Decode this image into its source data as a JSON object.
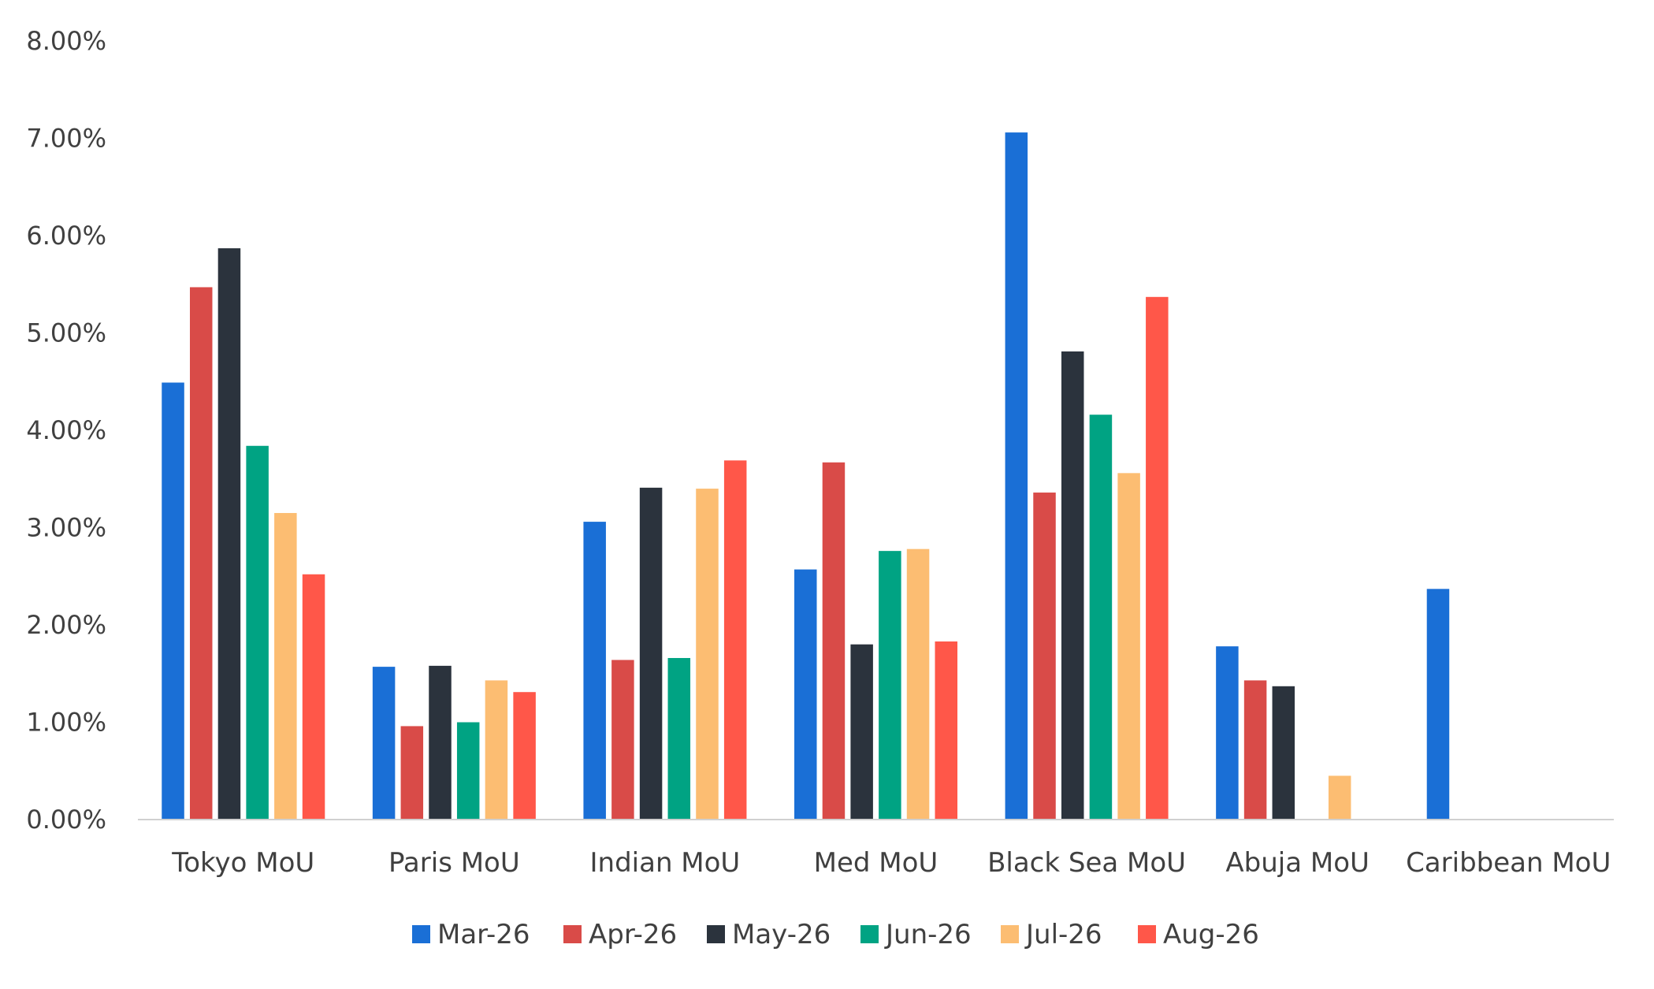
{
  "chart_data": {
    "type": "bar",
    "title": "",
    "xlabel": "",
    "ylabel": "",
    "ylim": [
      0,
      0.08
    ],
    "y_tick_step": 0.01,
    "y_tick_format": "percent-2dp",
    "grid": false,
    "legend_position": "bottom",
    "categories": [
      "Tokyo MoU",
      "Paris MoU",
      "Indian MoU",
      "Med MoU",
      "Black Sea MoU",
      "Abuja MoU",
      "Caribbean MoU"
    ],
    "series": [
      {
        "name": "Mar-26",
        "color": "#1a6fd6",
        "values": [
          0.0449,
          0.0157,
          0.0306,
          0.0257,
          0.0706,
          0.0178,
          0.0237
        ]
      },
      {
        "name": "Apr-26",
        "color": "#d94b48",
        "values": [
          0.0547,
          0.0096,
          0.0164,
          0.0367,
          0.0336,
          0.0143,
          0
        ]
      },
      {
        "name": "May-26",
        "color": "#2b333d",
        "values": [
          0.0587,
          0.0158,
          0.0341,
          0.018,
          0.0481,
          0.0137,
          0
        ]
      },
      {
        "name": "Jun-26",
        "color": "#00a383",
        "values": [
          0.0384,
          0.01,
          0.0166,
          0.0276,
          0.0416,
          0,
          0
        ]
      },
      {
        "name": "Jul-26",
        "color": "#fcbd72",
        "values": [
          0.0315,
          0.0143,
          0.034,
          0.0278,
          0.0356,
          0.0045,
          0
        ]
      },
      {
        "name": "Aug-26",
        "color": "#ff5749",
        "values": [
          0.0252,
          0.0131,
          0.0369,
          0.0183,
          0.0537,
          0,
          0
        ]
      }
    ]
  }
}
